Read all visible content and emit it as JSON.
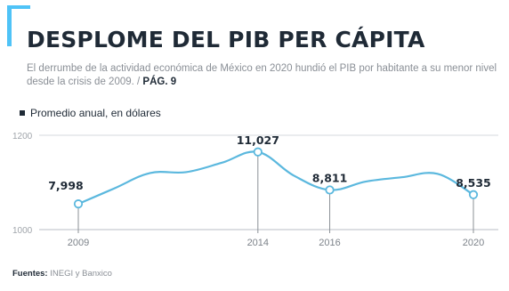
{
  "header": {
    "title": "DESPLOME DEL PIB PER CÁPITA",
    "subtitle": "El derrumbe de la actividad económica de México en 2020 hundió el PIB por habitante a su menor nivel desde la crisis de 2009. /",
    "page_ref": "PÁG. 9"
  },
  "legend": {
    "label": "Promedio anual, en dólares"
  },
  "footer": {
    "source_label": "Fuentes:",
    "source_text": "INEGI y Banxico"
  },
  "colors": {
    "line": "#5bb8de",
    "marker_fill": "#ffffff",
    "accent": "#4fc3f7",
    "text": "#1f2a36",
    "grid": "#d6d9dc"
  },
  "chart_data": {
    "type": "line",
    "title": "DESPLOME DEL PIB PER CÁPITA",
    "xlabel": "",
    "ylabel": "",
    "ytick_labels": [
      "1200",
      "1000"
    ],
    "x_tick_labels": [
      "2009",
      "2014",
      "2016",
      "2020"
    ],
    "xlim": [
      2009,
      2020
    ],
    "ylim": [
      6500,
      12000
    ],
    "grid": "horizontal",
    "series": [
      {
        "points": [
          {
            "x": 2009,
            "y": 7998
          },
          {
            "x": 2010,
            "y": 8900
          },
          {
            "x": 2011,
            "y": 9800
          },
          {
            "x": 2012,
            "y": 9850
          },
          {
            "x": 2013,
            "y": 10400
          },
          {
            "x": 2014,
            "y": 11027
          },
          {
            "x": 2015,
            "y": 9650
          },
          {
            "x": 2016,
            "y": 8811
          },
          {
            "x": 2017,
            "y": 9300
          },
          {
            "x": 2018,
            "y": 9550
          },
          {
            "x": 2019,
            "y": 9750
          },
          {
            "x": 2020,
            "y": 8535
          }
        ]
      }
    ],
    "labeled_points": [
      {
        "x": 2009,
        "y": 7998,
        "label": "7,998"
      },
      {
        "x": 2014,
        "y": 11027,
        "label": "11,027"
      },
      {
        "x": 2016,
        "y": 8811,
        "label": "8,811"
      },
      {
        "x": 2020,
        "y": 8535,
        "label": "8,535"
      }
    ]
  }
}
